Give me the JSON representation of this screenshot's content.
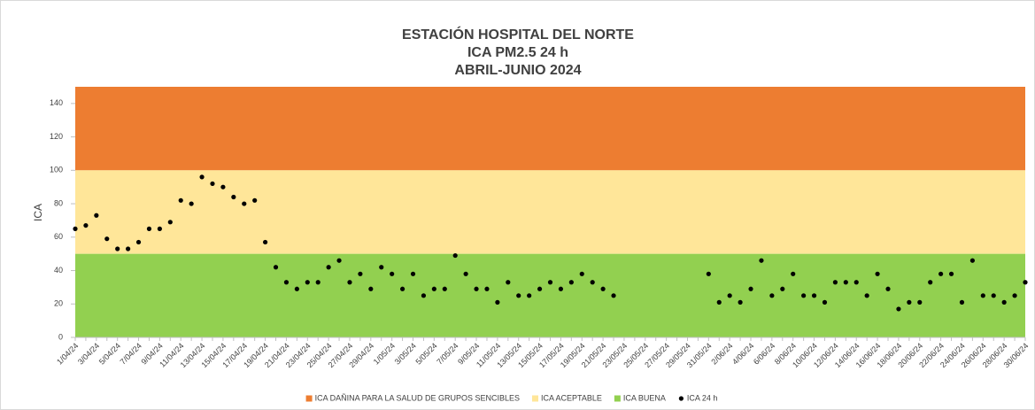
{
  "chart_data": {
    "type": "scatter",
    "title": [
      "ESTACIÓN HOSPITAL DEL NORTE",
      "ICA PM2.5 24 h",
      "ABRIL-JUNIO 2024"
    ],
    "ylabel": "ICA",
    "categories": [
      "1/04/24",
      null,
      "3/04/24",
      null,
      "5/04/24",
      null,
      "7/04/24",
      null,
      "9/04/24",
      null,
      "11/04/24",
      null,
      "13/04/24",
      null,
      "15/04/24",
      null,
      "17/04/24",
      null,
      "19/04/24",
      null,
      "21/04/24",
      null,
      "23/04/24",
      null,
      "25/04/24",
      null,
      "27/04/24",
      null,
      "29/04/24",
      null,
      "1/05/24",
      null,
      "3/05/24",
      null,
      "5/05/24",
      null,
      "7/05/24",
      null,
      "9/05/24",
      null,
      "11/05/24",
      null,
      "13/05/24",
      null,
      "15/05/24",
      null,
      "17/05/24",
      null,
      "19/05/24",
      null,
      "21/05/24",
      null,
      "23/05/24",
      null,
      "25/05/24",
      null,
      "27/05/24",
      null,
      "29/05/24",
      null,
      "31/05/24",
      null,
      "2/06/24",
      null,
      "4/06/24",
      null,
      "6/06/24",
      null,
      "8/06/24",
      null,
      "10/06/24",
      null,
      "12/06/24",
      null,
      "14/06/24",
      null,
      "16/06/24",
      null,
      "18/06/24",
      null,
      "20/06/24",
      null,
      "22/06/24",
      null,
      "24/06/24",
      null,
      "26/06/24",
      null,
      "28/06/24",
      null,
      "30/06/24"
    ],
    "bands": [
      {
        "name": "ICA DAÑINA PARA LA SALUD DE GRUPOS SENCIBLES",
        "color": "#ed7d31",
        "range": [
          100,
          150
        ]
      },
      {
        "name": "ICA ACEPTABLE",
        "color": "#ffe699",
        "range": [
          50,
          100
        ]
      },
      {
        "name": "ICA BUENA",
        "color": "#92d050",
        "range": [
          0,
          50
        ]
      }
    ],
    "series": [
      {
        "name": "ICA 24 h",
        "color": "#000000",
        "values": [
          65,
          67,
          73,
          59,
          53,
          53,
          57,
          65,
          65,
          69,
          82,
          80,
          96,
          92,
          90,
          84,
          80,
          82,
          57,
          42,
          33,
          29,
          33,
          33,
          42,
          46,
          33,
          38,
          29,
          42,
          38,
          29,
          38,
          25,
          29,
          29,
          49,
          38,
          29,
          29,
          21,
          33,
          25,
          25,
          29,
          33,
          29,
          33,
          38,
          33,
          29,
          25,
          null,
          null,
          null,
          null,
          null,
          null,
          null,
          null,
          38,
          21,
          25,
          21,
          29,
          46,
          25,
          29,
          38,
          25,
          25,
          21,
          33,
          33,
          33,
          25,
          38,
          29,
          17,
          21,
          21,
          33,
          38,
          38,
          21,
          46,
          25,
          25,
          21,
          25,
          33
        ]
      }
    ],
    "ylim": [
      0,
      150
    ],
    "yticks": [
      0,
      20,
      40,
      60,
      80,
      100,
      120,
      140
    ],
    "legend": "bottom"
  }
}
